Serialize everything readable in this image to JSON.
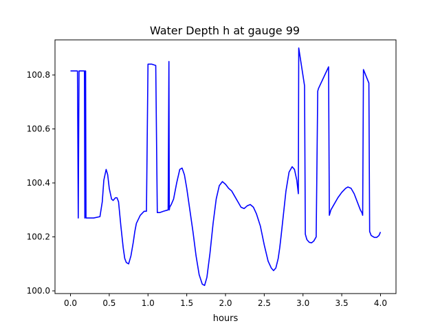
{
  "chart_data": {
    "type": "line",
    "title": "Water Depth h at gauge 99",
    "xlabel": "hours",
    "ylabel": "",
    "xlim": [
      -0.2,
      4.2
    ],
    "ylim": [
      99.99,
      100.93
    ],
    "xticks": [
      0.0,
      0.5,
      1.0,
      1.5,
      2.0,
      2.5,
      3.0,
      3.5,
      4.0
    ],
    "xtick_labels": [
      "0.0",
      "0.5",
      "1.0",
      "1.5",
      "2.0",
      "2.5",
      "3.0",
      "3.5",
      "4.0"
    ],
    "yticks": [
      100.0,
      100.2,
      100.4,
      100.6,
      100.8
    ],
    "ytick_labels": [
      "100.0",
      "100.2",
      "100.4",
      "100.6",
      "100.8"
    ],
    "grid": false,
    "series": [
      {
        "color": "#0000ff",
        "x": [
          0.0,
          0.08,
          0.09,
          0.1,
          0.11,
          0.18,
          0.185,
          0.19,
          0.195,
          0.2,
          0.21,
          0.22,
          0.3,
          0.38,
          0.41,
          0.43,
          0.46,
          0.48,
          0.5,
          0.53,
          0.55,
          0.58,
          0.6,
          0.62,
          0.65,
          0.68,
          0.7,
          0.72,
          0.75,
          0.78,
          0.81,
          0.83,
          0.85,
          0.9,
          0.95,
          0.98,
          1.0,
          1.01,
          1.02,
          1.03,
          1.05,
          1.1,
          1.12,
          1.13,
          1.15,
          1.2,
          1.26,
          1.27,
          1.275,
          1.28,
          1.3,
          1.33,
          1.37,
          1.41,
          1.44,
          1.47,
          1.5,
          1.53,
          1.58,
          1.62,
          1.66,
          1.7,
          1.73,
          1.76,
          1.8,
          1.84,
          1.88,
          1.92,
          1.96,
          2.0,
          2.04,
          2.08,
          2.12,
          2.16,
          2.2,
          2.24,
          2.28,
          2.32,
          2.36,
          2.4,
          2.45,
          2.5,
          2.55,
          2.59,
          2.62,
          2.65,
          2.68,
          2.7,
          2.72,
          2.75,
          2.78,
          2.82,
          2.86,
          2.89,
          2.92,
          2.94,
          2.945,
          3.02,
          3.03,
          3.05,
          3.08,
          3.11,
          3.14,
          3.17,
          3.19,
          3.2,
          3.33,
          3.34,
          3.36,
          3.4,
          3.45,
          3.5,
          3.55,
          3.58,
          3.62,
          3.66,
          3.7,
          3.74,
          3.76,
          3.77,
          3.78,
          3.85,
          3.86,
          3.88,
          3.92,
          3.95,
          3.98,
          4.0
        ],
        "y": [
          100.815,
          100.815,
          100.815,
          100.27,
          100.815,
          100.815,
          100.27,
          100.815,
          100.815,
          100.27,
          100.27,
          100.27,
          100.27,
          100.275,
          100.33,
          100.41,
          100.45,
          100.43,
          100.38,
          100.34,
          100.335,
          100.345,
          100.345,
          100.33,
          100.24,
          100.16,
          100.12,
          100.105,
          100.1,
          100.13,
          100.18,
          100.22,
          100.25,
          100.28,
          100.295,
          100.295,
          100.84,
          100.84,
          100.84,
          100.84,
          100.84,
          100.835,
          100.29,
          100.29,
          100.29,
          100.295,
          100.3,
          100.85,
          100.3,
          100.31,
          100.32,
          100.34,
          100.4,
          100.45,
          100.455,
          100.43,
          100.38,
          100.32,
          100.22,
          100.13,
          100.06,
          100.025,
          100.02,
          100.05,
          100.14,
          100.25,
          100.34,
          100.39,
          100.405,
          100.395,
          100.38,
          100.37,
          100.35,
          100.33,
          100.31,
          100.305,
          100.315,
          100.32,
          100.31,
          100.285,
          100.24,
          100.17,
          100.11,
          100.085,
          100.075,
          100.085,
          100.12,
          100.16,
          100.21,
          100.29,
          100.37,
          100.44,
          100.46,
          100.45,
          100.41,
          100.36,
          100.9,
          100.76,
          100.21,
          100.19,
          100.18,
          100.178,
          100.185,
          100.2,
          100.74,
          100.75,
          100.83,
          100.28,
          100.3,
          100.32,
          100.345,
          100.365,
          100.38,
          100.385,
          100.38,
          100.36,
          100.33,
          100.3,
          100.29,
          100.28,
          100.82,
          100.77,
          100.22,
          100.205,
          100.198,
          100.198,
          100.205,
          100.218
        ]
      }
    ]
  }
}
